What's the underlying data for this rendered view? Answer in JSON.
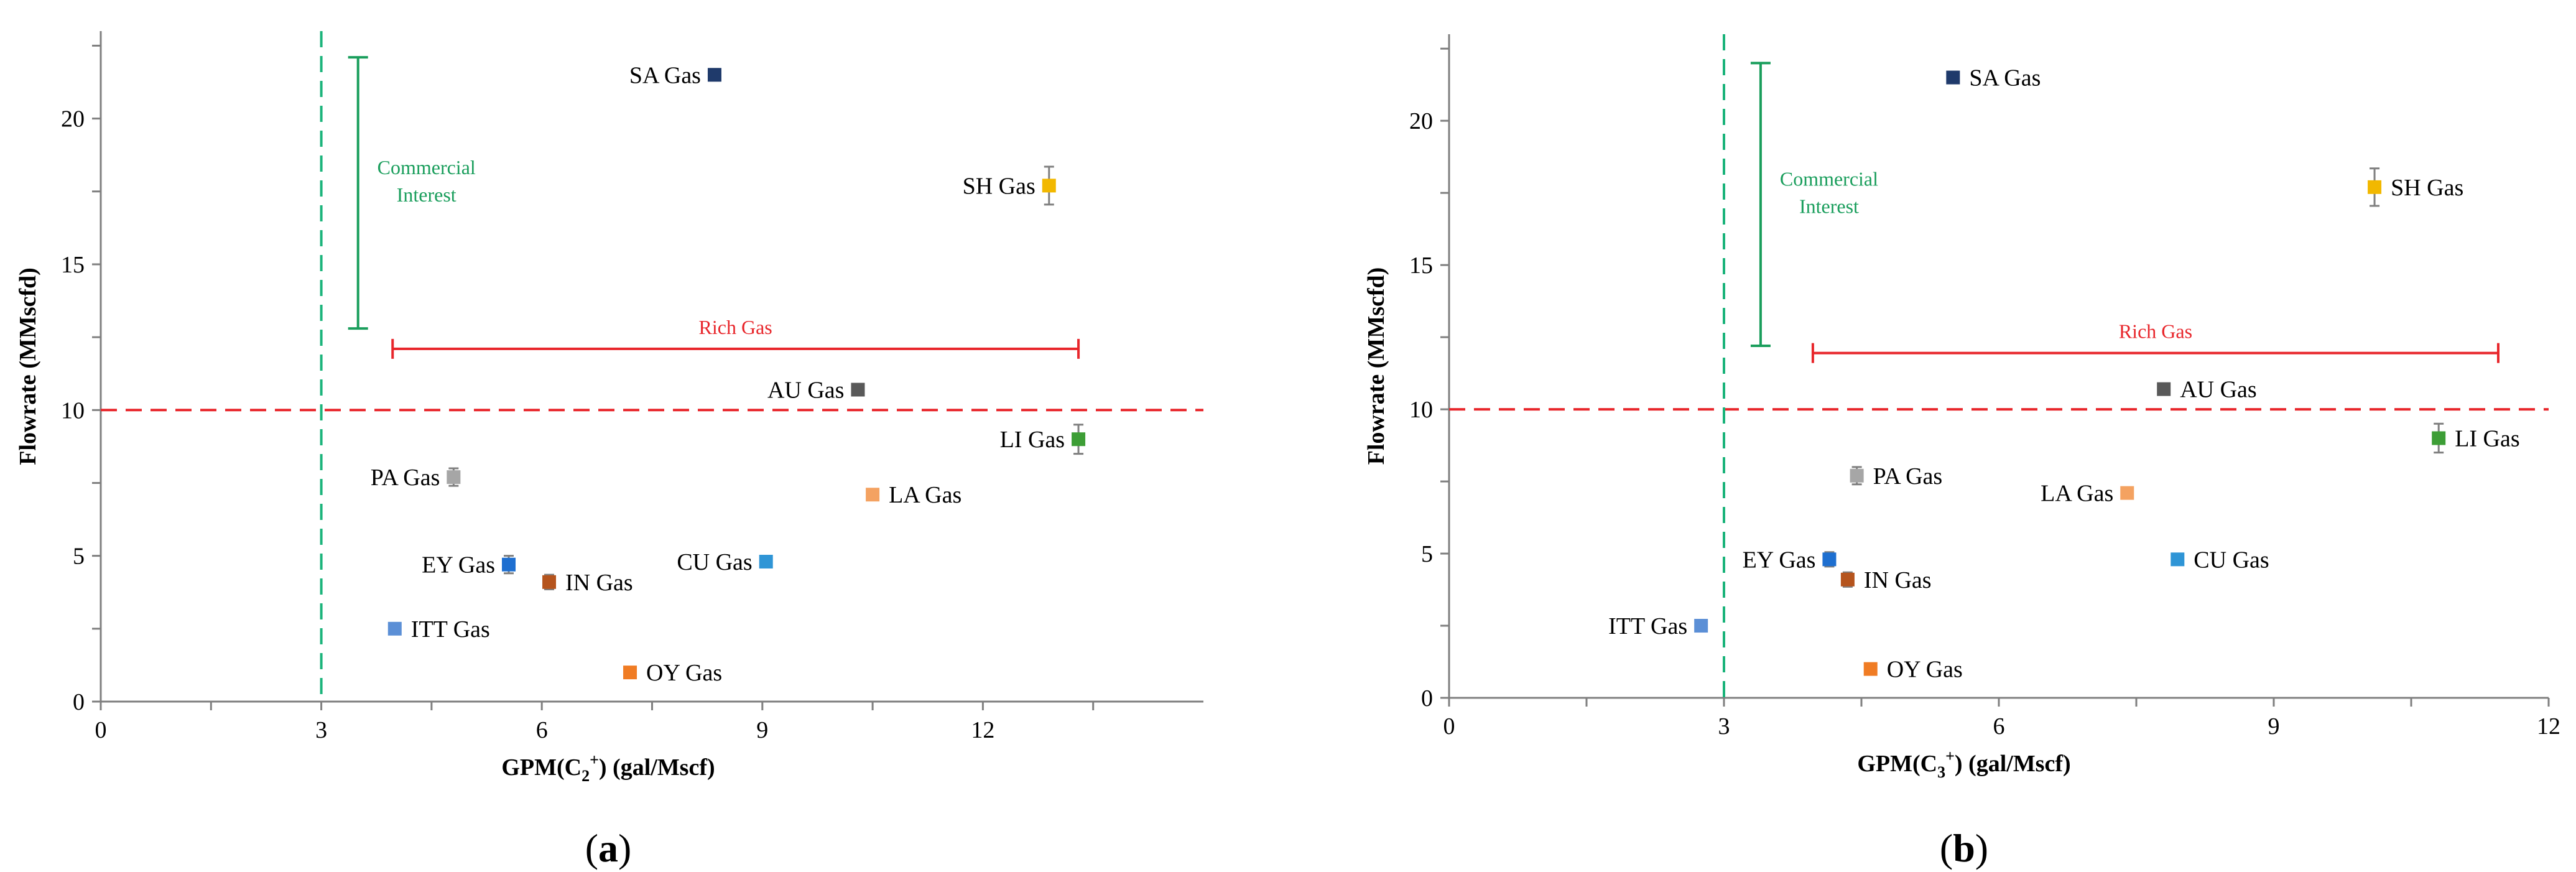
{
  "chart_data": [
    {
      "type": "scatter",
      "panel_label": "(a)",
      "panel_letter": "a",
      "title": "",
      "xlabel_prefix": "GPM(C",
      "xlabel_sub": "2",
      "xlabel_sup": "+",
      "xlabel_suffix": ")   (gal/Mscf)",
      "ylabel": "Flowrate (MMscfd)",
      "xlim": [
        0,
        15
      ],
      "ylim": [
        0,
        23
      ],
      "xticks": [
        0,
        3,
        6,
        9,
        12
      ],
      "xticks_minor": [
        1.5,
        4.5,
        7.5,
        10.5,
        13.5
      ],
      "yticks": [
        0,
        5,
        10,
        15,
        20
      ],
      "yticks_minor": [
        2.5,
        7.5,
        12.5,
        17.5,
        22.5
      ],
      "hline": {
        "y": 10,
        "color": "#e8262b"
      },
      "vline": {
        "x": 3,
        "color": "#1ab37a"
      },
      "commercial": {
        "x": 3.5,
        "y_low": 12.8,
        "y_high": 22.1,
        "label_line1": "Commercial",
        "label_line2": "Interest",
        "color": "#1a9e5c"
      },
      "rich_gas": {
        "x_low": 3.97,
        "x_high": 13.3,
        "y": 12.1,
        "label": "Rich Gas",
        "color": "#e8262b"
      },
      "points": [
        {
          "name": "SA Gas",
          "x": 8.35,
          "y": 21.5,
          "err": 0.2,
          "color": "#1f3a6b",
          "label_pos": "left"
        },
        {
          "name": "SH Gas",
          "x": 12.9,
          "y": 17.7,
          "err": 0.65,
          "color": "#f2b800",
          "label_pos": "left"
        },
        {
          "name": "AU Gas",
          "x": 10.3,
          "y": 10.7,
          "err": 0.2,
          "color": "#595959",
          "label_pos": "left"
        },
        {
          "name": "LI Gas",
          "x": 13.3,
          "y": 9.0,
          "err": 0.5,
          "color": "#3d9e36",
          "label_pos": "left"
        },
        {
          "name": "PA Gas",
          "x": 4.8,
          "y": 7.7,
          "err": 0.3,
          "color": "#a6a6a6",
          "label_pos": "left"
        },
        {
          "name": "LA Gas",
          "x": 10.5,
          "y": 7.1,
          "err": 0,
          "color": "#f4a261",
          "label_pos": "right"
        },
        {
          "name": "EY Gas",
          "x": 5.55,
          "y": 4.7,
          "err": 0.3,
          "color": "#1e6fd0",
          "label_pos": "left"
        },
        {
          "name": "IN Gas",
          "x": 6.1,
          "y": 4.1,
          "err": 0.25,
          "color": "#b5541d",
          "label_pos": "right"
        },
        {
          "name": "CU Gas",
          "x": 9.05,
          "y": 4.8,
          "err": 0.15,
          "color": "#2f95d6",
          "label_pos": "left"
        },
        {
          "name": "ITT Gas",
          "x": 4.0,
          "y": 2.5,
          "err": 0,
          "color": "#5b8fd6",
          "label_pos": "right"
        },
        {
          "name": "OY Gas",
          "x": 7.2,
          "y": 1.0,
          "err": 0,
          "color": "#f07c24",
          "label_pos": "right"
        }
      ]
    },
    {
      "type": "scatter",
      "panel_label": "(b)",
      "panel_letter": "b",
      "title": "",
      "xlabel_prefix": "GPM(C",
      "xlabel_sub": "3",
      "xlabel_sup": "+",
      "xlabel_suffix": ")   (gal/Mscf)",
      "ylabel": "Flowrate (MMscfd)",
      "xlim": [
        0,
        12
      ],
      "ylim": [
        0,
        23
      ],
      "xticks": [
        0,
        3,
        6,
        9,
        12
      ],
      "xticks_minor": [
        1.5,
        4.5,
        7.5,
        10.5
      ],
      "yticks": [
        0,
        5,
        10,
        15,
        20
      ],
      "yticks_minor": [
        2.5,
        7.5,
        12.5,
        17.5,
        22.5
      ],
      "hline": {
        "y": 10,
        "color": "#e8262b"
      },
      "vline": {
        "x": 3,
        "color": "#1ab37a"
      },
      "commercial": {
        "x": 3.4,
        "y_low": 12.2,
        "y_high": 22.0,
        "label_line1": "Commercial",
        "label_line2": "Interest",
        "color": "#1a9e5c"
      },
      "rich_gas": {
        "x_low": 3.97,
        "x_high": 11.45,
        "y": 11.95,
        "label": "Rich Gas",
        "color": "#e8262b"
      },
      "points": [
        {
          "name": "SA Gas",
          "x": 5.5,
          "y": 21.5,
          "err": 0.2,
          "color": "#1f3a6b",
          "label_pos": "right"
        },
        {
          "name": "SH Gas",
          "x": 10.1,
          "y": 17.7,
          "err": 0.65,
          "color": "#f2b800",
          "label_pos": "right"
        },
        {
          "name": "AU Gas",
          "x": 7.8,
          "y": 10.7,
          "err": 0.2,
          "color": "#595959",
          "label_pos": "right"
        },
        {
          "name": "LI Gas",
          "x": 10.8,
          "y": 9.0,
          "err": 0.5,
          "color": "#3d9e36",
          "label_pos": "right"
        },
        {
          "name": "PA Gas",
          "x": 4.45,
          "y": 7.7,
          "err": 0.3,
          "color": "#a6a6a6",
          "label_pos": "right"
        },
        {
          "name": "LA Gas",
          "x": 7.4,
          "y": 7.1,
          "err": 0,
          "color": "#f4a261",
          "label_pos": "left"
        },
        {
          "name": "EY Gas",
          "x": 4.15,
          "y": 4.8,
          "err": 0.25,
          "color": "#1e6fd0",
          "label_pos": "left"
        },
        {
          "name": "IN Gas",
          "x": 4.35,
          "y": 4.1,
          "err": 0.25,
          "color": "#b5541d",
          "label_pos": "right"
        },
        {
          "name": "CU Gas",
          "x": 7.95,
          "y": 4.8,
          "err": 0.15,
          "color": "#2f95d6",
          "label_pos": "right"
        },
        {
          "name": "ITT Gas",
          "x": 2.75,
          "y": 2.5,
          "err": 0,
          "color": "#5b8fd6",
          "label_pos": "left"
        },
        {
          "name": "OY Gas",
          "x": 4.6,
          "y": 1.0,
          "err": 0,
          "color": "#f07c24",
          "label_pos": "right"
        }
      ]
    }
  ]
}
